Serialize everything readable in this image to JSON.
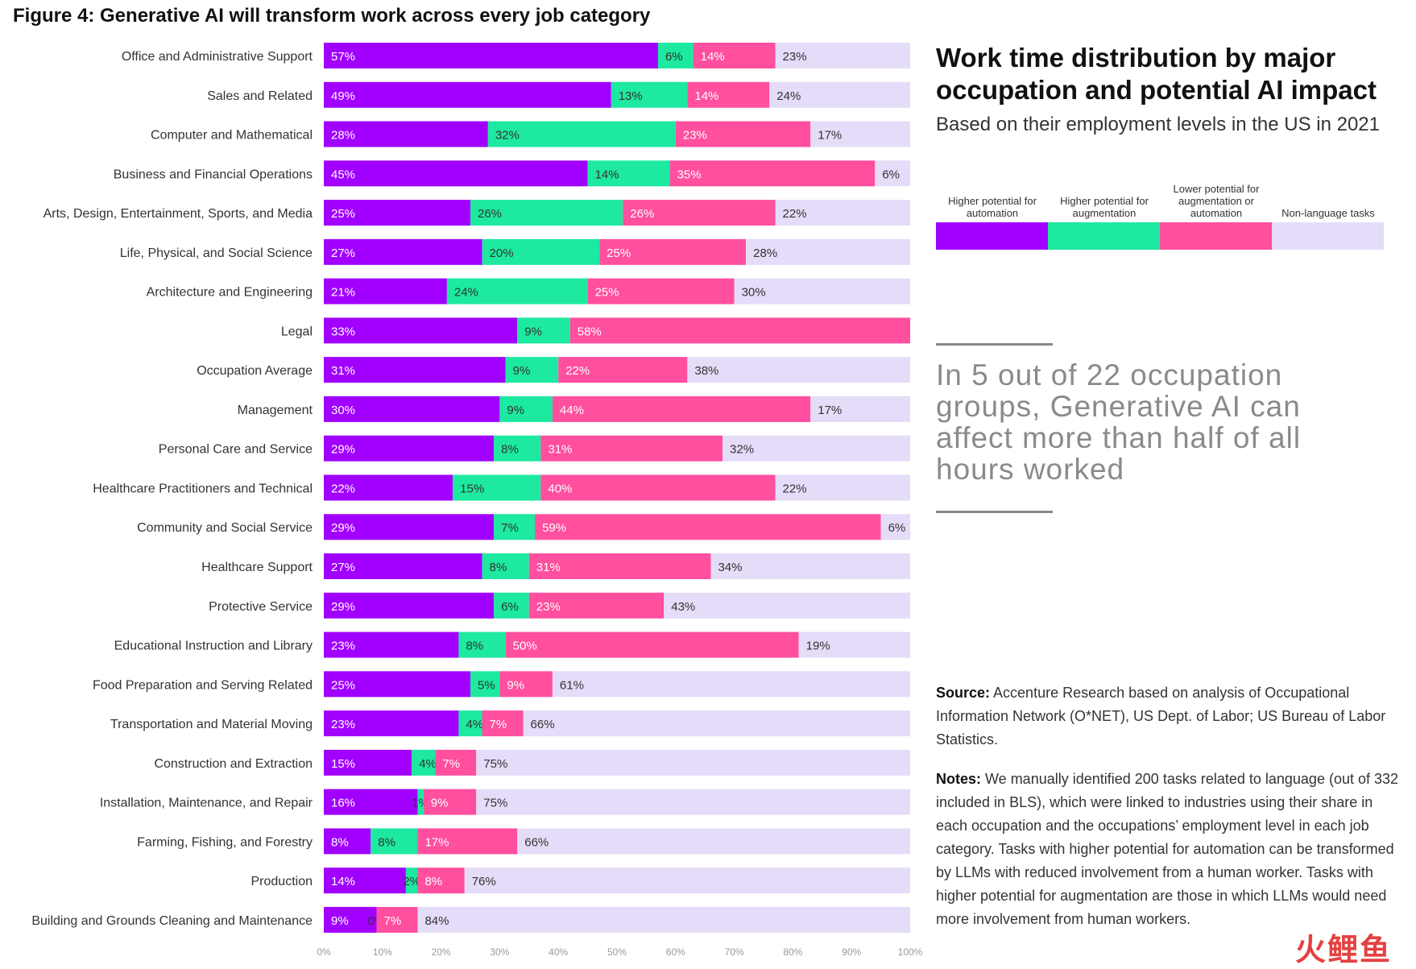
{
  "figure_title": "Figure 4: Generative AI will transform work across every job category",
  "right_panel": {
    "title": "Work time distribution by major occupation and potential AI impact",
    "subtitle": "Based on their employment levels in the US in 2021",
    "callout": "In 5 out of 22 occupation groups, Generative AI can affect more than half of all hours worked",
    "source_label": "Source:",
    "source_text": " Accenture Research based on analysis of Occupational Information Network (O*NET), US Dept. of Labor; US Bureau of Labor Statistics.",
    "notes_label": "Notes:",
    "notes_text": " We manually identified 200 tasks related to language (out of 332 included in BLS), which were linked to industries using their share in each occupation and the occupations’ employment level in each job category. Tasks with higher potential for automation can be transformed by LLMs with reduced involvement from a human worker. Tasks with higher potential for augmentation are those in which LLMs would need more involvement from human workers."
  },
  "watermark": "火鲤鱼",
  "chart_data": {
    "type": "bar",
    "orientation": "horizontal",
    "stacked": true,
    "xlim": [
      0,
      100
    ],
    "x_ticks": [
      "0%",
      "10%",
      "20%",
      "30%",
      "40%",
      "50%",
      "60%",
      "70%",
      "80%",
      "90%",
      "100%"
    ],
    "legend_position": "top-right",
    "categories": [
      "Office and Administrative Support",
      "Sales and Related",
      "Computer and Mathematical",
      "Business and Financial Operations",
      "Arts, Design, Entertainment, Sports, and Media",
      "Life, Physical, and Social Science",
      "Architecture and Engineering",
      "Legal",
      "Occupation Average",
      "Management",
      "Personal Care and Service",
      "Healthcare Practitioners and Technical",
      "Community and Social Service",
      "Healthcare Support",
      "Protective Service",
      "Educational Instruction and Library",
      "Food Preparation and Serving Related",
      "Transportation and Material Moving",
      "Construction and Extraction",
      "Installation, Maintenance, and Repair",
      "Farming, Fishing, and Forestry",
      "Production",
      "Building and Grounds Cleaning and Maintenance"
    ],
    "series": [
      {
        "name": "Higher potential for automation",
        "color": "#a100ff",
        "values": [
          57,
          49,
          28,
          45,
          25,
          27,
          21,
          33,
          31,
          30,
          29,
          22,
          29,
          27,
          29,
          23,
          25,
          23,
          15,
          16,
          8,
          14,
          9
        ]
      },
      {
        "name": "Higher potential for augmentation",
        "color": "#1de9a0",
        "values": [
          6,
          13,
          32,
          14,
          26,
          20,
          24,
          9,
          9,
          9,
          8,
          15,
          7,
          8,
          6,
          8,
          5,
          4,
          4,
          1,
          8,
          2,
          0
        ]
      },
      {
        "name": "Lower potential for augmentation or automation",
        "color": "#ff4f9e",
        "values": [
          14,
          14,
          23,
          35,
          26,
          25,
          25,
          58,
          22,
          44,
          31,
          40,
          59,
          31,
          23,
          50,
          9,
          7,
          7,
          9,
          17,
          8,
          7
        ]
      },
      {
        "name": "Non-language tasks",
        "color": "#e4dcf8",
        "values": [
          23,
          24,
          17,
          6,
          22,
          28,
          30,
          0,
          38,
          17,
          32,
          22,
          6,
          34,
          43,
          19,
          61,
          66,
          75,
          75,
          66,
          76,
          84
        ]
      }
    ]
  }
}
